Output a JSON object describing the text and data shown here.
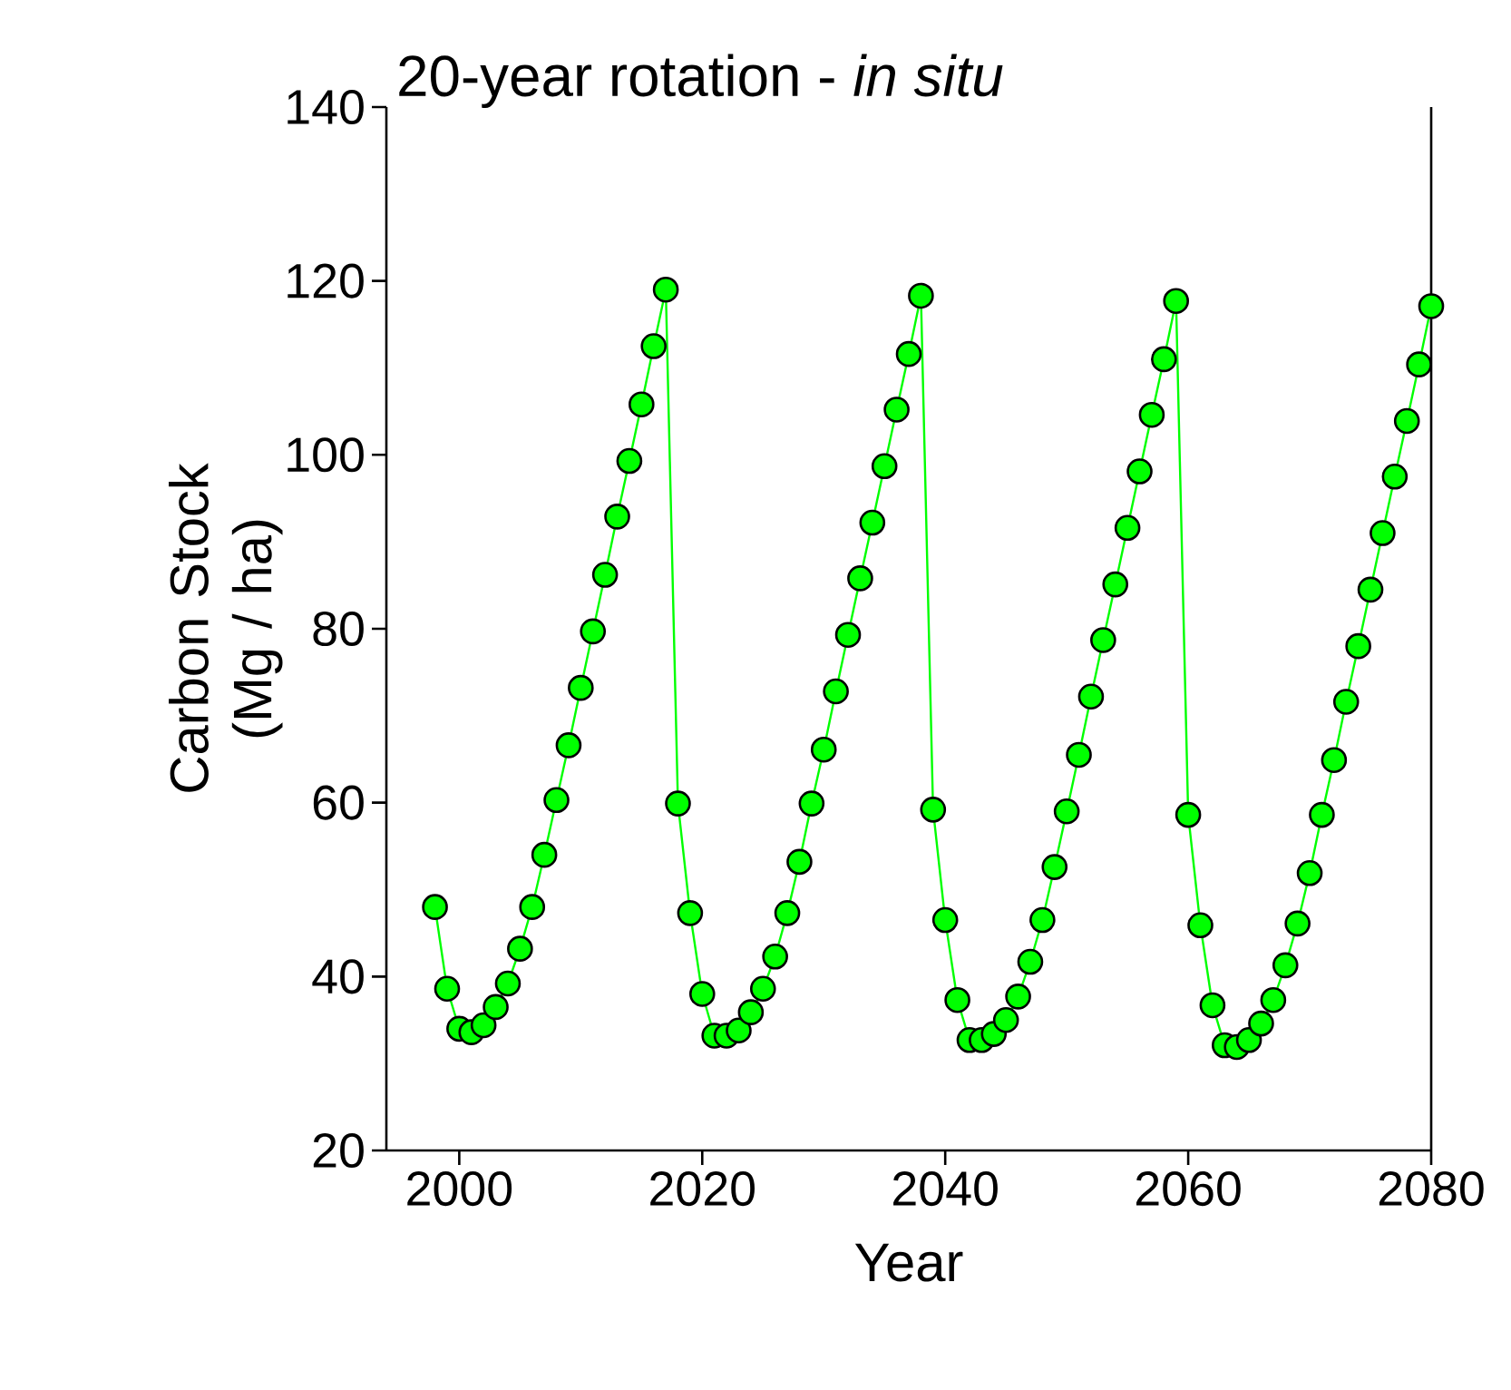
{
  "chart_data": {
    "type": "line",
    "title": "20-year rotation - *in situ*",
    "xlabel": "Year",
    "ylabel": "Carbon Stock (Mg / ha)",
    "x": [
      1998,
      1999,
      2000,
      2001,
      2002,
      2003,
      2004,
      2005,
      2006,
      2007,
      2008,
      2009,
      2010,
      2011,
      2012,
      2013,
      2014,
      2015,
      2016,
      2017,
      2018,
      2019,
      2020,
      2021,
      2022,
      2023,
      2024,
      2025,
      2026,
      2027,
      2028,
      2029,
      2030,
      2031,
      2032,
      2033,
      2034,
      2035,
      2036,
      2037,
      2038,
      2039,
      2040,
      2041,
      2042,
      2043,
      2044,
      2045,
      2046,
      2047,
      2048,
      2049,
      2050,
      2051,
      2052,
      2053,
      2054,
      2055,
      2056,
      2057,
      2058,
      2059,
      2060,
      2061,
      2062,
      2063,
      2064,
      2065,
      2066,
      2067,
      2068,
      2069,
      2070,
      2071,
      2072,
      2073,
      2074,
      2075,
      2076,
      2077,
      2078,
      2079,
      2080
    ],
    "series": [
      {
        "color": "#00ff00",
        "values": [
          48.0,
          38.6,
          34.0,
          33.6,
          34.4,
          36.5,
          39.2,
          43.2,
          48.0,
          54.0,
          60.3,
          66.6,
          73.2,
          79.7,
          86.2,
          92.9,
          99.3,
          105.8,
          112.5,
          119.0,
          59.9,
          47.3,
          38.0,
          33.2,
          33.2,
          33.8,
          35.9,
          38.6,
          42.3,
          47.3,
          53.2,
          59.9,
          66.1,
          72.8,
          79.3,
          85.8,
          92.2,
          98.7,
          105.2,
          111.6,
          118.3,
          59.2,
          46.5,
          37.3,
          32.7,
          32.7,
          33.4,
          35.0,
          37.7,
          41.7,
          46.5,
          52.6,
          59.0,
          65.5,
          72.2,
          78.7,
          85.1,
          91.6,
          98.1,
          104.6,
          111.0,
          117.7,
          58.6,
          45.9,
          36.7,
          32.1,
          31.9,
          32.7,
          34.6,
          37.3,
          41.3,
          46.1,
          51.9,
          58.6,
          64.9,
          71.6,
          78.0,
          84.5,
          91.0,
          97.5,
          103.9,
          110.4,
          117.1
        ]
      }
    ],
    "xlim": [
      1994,
      2080
    ],
    "ylim": [
      20,
      140
    ],
    "xticks": [
      2000,
      2020,
      2040,
      2060,
      2080
    ],
    "yticks": [
      20,
      40,
      60,
      80,
      100,
      120,
      140
    ],
    "marker": "circle",
    "line_style": "solid"
  }
}
